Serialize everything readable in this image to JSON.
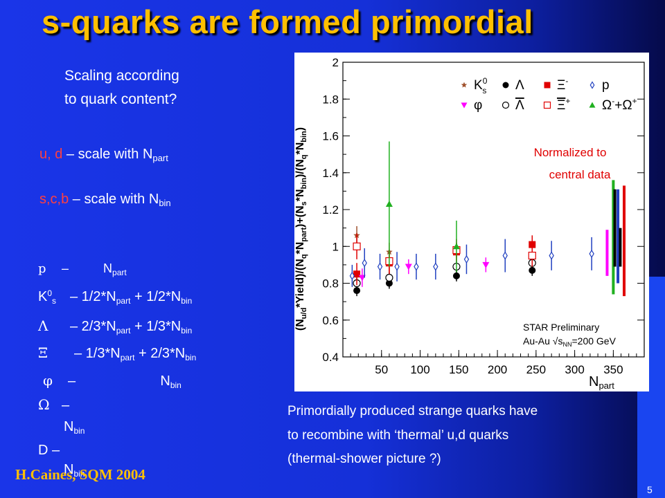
{
  "title": "s-quarks are formed primordial",
  "question": [
    "Scaling according",
    "to quark content?"
  ],
  "rules": [
    {
      "flavor": "u, d",
      "text": " – scale with N",
      "sub": "part"
    },
    {
      "flavor": "s,c,b",
      "text": " – scale with N",
      "sub": "bin"
    }
  ],
  "scaling_list": [
    {
      "symbol": "p",
      "text": "–          N",
      "sub": "part",
      "rest": ""
    },
    {
      "symbol": "K",
      "sup": "0",
      "symsub": "s",
      "text": "– 1/2*N",
      "sub": "part",
      "rest": " + 1/2*N",
      "sub2": "bin"
    },
    {
      "symbol": "Λ",
      "text": "–  2/3*N",
      "sub": "part",
      "rest": " + 1/3*N",
      "sub2": "bin"
    },
    {
      "symbol": "Ξ",
      "text": "– 1/3*N",
      "sub": "part",
      "rest": " + 2/3*N",
      "sub2": "bin"
    },
    {
      "symbol": "φ",
      "text": "–                      N",
      "sub": "bin",
      "rest": ""
    },
    {
      "symbol": "Ω",
      "text": "–",
      "line2": "N",
      "sub": "bin"
    },
    {
      "symbol": "D",
      "text": "–",
      "line2": "N",
      "sub": "bin"
    }
  ],
  "description": [
    "Primordially produced strange quarks have",
    "to recombine with ‘thermal’ u,d quarks",
    "(thermal-shower picture ?)"
  ],
  "footer": "H.Caines, SQM 2004",
  "page_number": "5",
  "chart_data": {
    "type": "scatter",
    "ylabel": "(N_u/d*Yield)/(N_q*N_part)+(N_s*N_bin)/(N_q*N_bin)",
    "xlabel": "N_part",
    "xlim": [
      0,
      390
    ],
    "ylim": [
      0.4,
      2.0
    ],
    "xticks": [
      50,
      100,
      150,
      200,
      250,
      300,
      350
    ],
    "yticks": [
      0.4,
      0.6,
      0.8,
      1,
      1.2,
      1.4,
      1.6,
      1.8,
      2
    ],
    "annotation": [
      "Normalized to",
      "central data"
    ],
    "star_label": [
      "STAR Preliminary",
      "Au-Au √s",
      "=200 GeV"
    ],
    "star_label_sub": "NN",
    "colors": {
      "K0s": "#a0522d",
      "Lambda": "#000000",
      "Xi": "#e00000",
      "p": "#2040c0",
      "phi": "#ff00ff",
      "Omega": "#20b020"
    },
    "legend": [
      {
        "key": "K0s",
        "text": "K",
        "sup": "0",
        "sub": "s",
        "marker": "star",
        "color": "#a0522d"
      },
      {
        "key": "Lambda",
        "text": "Λ",
        "marker": "circle",
        "color": "#000000"
      },
      {
        "key": "Xi",
        "text": "Ξ",
        "sup": "-",
        "marker": "square",
        "color": "#e00000"
      },
      {
        "key": "p",
        "text": "p",
        "marker": "diamond",
        "color": "#2040c0"
      },
      {
        "key": "phi",
        "text": "φ",
        "marker": "tri-down",
        "color": "#ff00ff"
      },
      {
        "key": "Lambdabar",
        "text": "Λ",
        "bar": true,
        "marker": "circle-open",
        "color": "#000000"
      },
      {
        "key": "Xibar",
        "text": "Ξ",
        "bar": true,
        "sup": "+",
        "marker": "square-open",
        "color": "#e00000"
      },
      {
        "key": "Omega",
        "text": "Ω",
        "sup": "-",
        "text2": "+Ω",
        "bar2": true,
        "sup2": "+",
        "marker": "tri-up",
        "color": "#20b020"
      }
    ],
    "series": [
      {
        "name": "K0s",
        "marker": "star",
        "color": "#a0522d",
        "points": [
          [
            18,
            1.06,
            0.05
          ],
          [
            60,
            0.97,
            0.05
          ],
          [
            147,
            0.98,
            0.04
          ],
          [
            245,
            0.93,
            0.04
          ]
        ]
      },
      {
        "name": "Lambda",
        "marker": "circle",
        "color": "#000000",
        "points": [
          [
            18,
            0.76,
            0.03
          ],
          [
            60,
            0.8,
            0.03
          ],
          [
            147,
            0.84,
            0.03
          ],
          [
            245,
            0.87,
            0.03
          ]
        ]
      },
      {
        "name": "Lambdabar",
        "marker": "circle-open",
        "color": "#000000",
        "points": [
          [
            18,
            0.8,
            0.03
          ],
          [
            60,
            0.83,
            0.03
          ],
          [
            147,
            0.89,
            0.03
          ],
          [
            245,
            0.91,
            0.03
          ]
        ]
      },
      {
        "name": "Xi",
        "marker": "square",
        "color": "#e00000",
        "points": [
          [
            18,
            0.85,
            0.06
          ],
          [
            60,
            0.91,
            0.06
          ],
          [
            147,
            0.97,
            0.05
          ],
          [
            245,
            1.01,
            0.05
          ]
        ]
      },
      {
        "name": "Xibar",
        "marker": "square-open",
        "color": "#e00000",
        "points": [
          [
            18,
            1.0,
            0.07
          ],
          [
            60,
            0.92,
            0.06
          ],
          [
            147,
            0.98,
            0.06
          ],
          [
            245,
            0.95,
            0.06
          ]
        ]
      },
      {
        "name": "Omega",
        "marker": "tri-up",
        "color": "#20b020",
        "points": [
          [
            60,
            1.23,
            0.34
          ],
          [
            147,
            1.0,
            0.14
          ]
        ]
      },
      {
        "name": "phi",
        "marker": "tri-down",
        "color": "#ff00ff",
        "points": [
          [
            25,
            0.83,
            0.05
          ],
          [
            85,
            0.89,
            0.04
          ],
          [
            185,
            0.9,
            0.04
          ]
        ]
      },
      {
        "name": "p",
        "marker": "diamond",
        "color": "#2040c0",
        "points": [
          [
            12,
            0.84,
            0.06
          ],
          [
            28,
            0.91,
            0.08
          ],
          [
            48,
            0.89,
            0.07
          ],
          [
            70,
            0.89,
            0.08
          ],
          [
            95,
            0.89,
            0.07
          ],
          [
            120,
            0.89,
            0.07
          ],
          [
            160,
            0.93,
            0.08
          ],
          [
            210,
            0.95,
            0.09
          ],
          [
            270,
            0.95,
            0.08
          ],
          [
            322,
            0.96,
            0.09
          ]
        ]
      }
    ],
    "systematic_bars": [
      {
        "name": "phi",
        "x": 342,
        "y": [
          0.84,
          1.09
        ],
        "color": "#ff00ff"
      },
      {
        "name": "Omega",
        "x": 350,
        "y": [
          0.74,
          1.36
        ],
        "color": "#20b020"
      },
      {
        "name": "Lambda",
        "x": 352,
        "y": [
          0.89,
          1.31
        ],
        "color": "#000000"
      },
      {
        "name": "p",
        "x": 356,
        "y": [
          0.8,
          1.31
        ],
        "color": "#2040c0"
      },
      {
        "name": "Lambdabar",
        "x": 359,
        "y": [
          0.89,
          1.1
        ],
        "color": "#000000"
      },
      {
        "name": "Xi",
        "x": 364,
        "y": [
          0.73,
          1.33
        ],
        "color": "#e00000"
      }
    ]
  }
}
